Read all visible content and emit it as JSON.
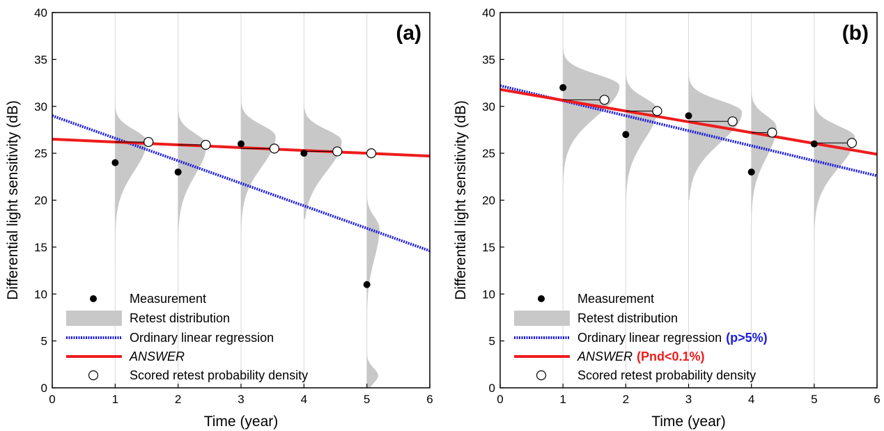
{
  "chart_data": [
    {
      "type": "scatter",
      "panel_label": "(a)",
      "xlabel": "Time (year)",
      "ylabel": "Differential light sensitivity (dB)",
      "xlim": [
        0,
        6
      ],
      "ylim": [
        0,
        40
      ],
      "x_ticks": [
        0,
        1,
        2,
        3,
        4,
        5,
        6
      ],
      "y_ticks": [
        0,
        5,
        10,
        15,
        20,
        25,
        30,
        35,
        40
      ],
      "grid": "vertical lines at x = 1..5",
      "legend_position": "bottom-left",
      "series": [
        {
          "name": "Measurement",
          "kind": "points",
          "x": [
            1,
            2,
            3,
            4,
            5
          ],
          "y": [
            24,
            23,
            26,
            25,
            11
          ]
        },
        {
          "name": "Retest distribution",
          "kind": "density",
          "distributions": [
            {
              "x": 1,
              "peak_y": 26.3,
              "peak_width_years": 0.5,
              "range": [
                7,
                32
              ]
            },
            {
              "x": 2,
              "peak_y": 25.9,
              "peak_width_years": 0.45,
              "range": [
                7,
                32
              ]
            },
            {
              "x": 3,
              "peak_y": 26.8,
              "peak_width_years": 0.55,
              "range": [
                14,
                32
              ]
            },
            {
              "x": 4,
              "peak_y": 26.3,
              "peak_width_years": 0.6,
              "range": [
                18,
                32
              ]
            },
            {
              "x": 5,
              "peak_y": 17.0,
              "peak_width_years": 0.2,
              "range": [
                0,
                33
              ],
              "secondary_peak_y": 1.3
            }
          ]
        },
        {
          "name": "Ordinary linear regression",
          "kind": "line",
          "intercept": 29.0,
          "slope": -2.4
        },
        {
          "name": "ANSWER",
          "kind": "line",
          "intercept": 26.5,
          "slope": -0.3
        },
        {
          "name": "Scored retest probability density",
          "kind": "points",
          "x": [
            1.53,
            2.44,
            3.53,
            4.53,
            5.07
          ],
          "y": [
            26.2,
            25.9,
            25.5,
            25.2,
            25.0
          ],
          "connected_from_x": [
            1,
            2,
            3,
            4,
            5
          ]
        }
      ],
      "legend": [
        {
          "label": "Measurement",
          "suffix": "",
          "suffix_color": ""
        },
        {
          "label": "Retest distribution",
          "suffix": "",
          "suffix_color": ""
        },
        {
          "label": "Ordinary linear regression",
          "suffix": "",
          "suffix_color": ""
        },
        {
          "label": "ANSWER",
          "suffix": "",
          "suffix_color": ""
        },
        {
          "label": "Scored retest probability density",
          "suffix": "",
          "suffix_color": ""
        }
      ]
    },
    {
      "type": "scatter",
      "panel_label": "(b)",
      "xlabel": "Time (year)",
      "ylabel": "Differential light sensitivity (dB)",
      "xlim": [
        0,
        6
      ],
      "ylim": [
        0,
        40
      ],
      "x_ticks": [
        0,
        1,
        2,
        3,
        4,
        5,
        6
      ],
      "y_ticks": [
        0,
        5,
        10,
        15,
        20,
        25,
        30,
        35,
        40
      ],
      "grid": "vertical lines at x = 1..5",
      "legend_position": "bottom-left",
      "series": [
        {
          "name": "Measurement",
          "kind": "points",
          "x": [
            1,
            2,
            3,
            4,
            5
          ],
          "y": [
            32,
            27,
            29,
            23,
            26
          ]
        },
        {
          "name": "Retest distribution",
          "kind": "density",
          "distributions": [
            {
              "x": 1,
              "peak_y": 32.2,
              "peak_width_years": 0.9,
              "range": [
                20,
                36
              ]
            },
            {
              "x": 2,
              "peak_y": 29.7,
              "peak_width_years": 0.5,
              "range": [
                15,
                34
              ]
            },
            {
              "x": 3,
              "peak_y": 29.4,
              "peak_width_years": 0.85,
              "range": [
                20,
                34
              ]
            },
            {
              "x": 4,
              "peak_y": 27.8,
              "peak_width_years": 0.4,
              "range": [
                0,
                32
              ]
            },
            {
              "x": 5,
              "peak_y": 26.7,
              "peak_width_years": 0.65,
              "range": [
                13,
                33
              ]
            }
          ]
        },
        {
          "name": "Ordinary linear regression",
          "kind": "line",
          "intercept": 32.2,
          "slope": -1.6
        },
        {
          "name": "ANSWER",
          "kind": "line",
          "intercept": 31.8,
          "slope": -1.15
        },
        {
          "name": "Scored retest probability density",
          "kind": "points",
          "x": [
            1.66,
            2.5,
            3.7,
            4.33,
            5.6
          ],
          "y": [
            30.7,
            29.5,
            28.4,
            27.2,
            26.1
          ],
          "connected_from_x": [
            1,
            2,
            3,
            4,
            5
          ]
        }
      ],
      "legend": [
        {
          "label": "Measurement",
          "suffix": "",
          "suffix_color": ""
        },
        {
          "label": "Retest distribution",
          "suffix": "",
          "suffix_color": ""
        },
        {
          "label": "Ordinary linear regression",
          "suffix": "(p>5%)",
          "suffix_color": "#1a1adb"
        },
        {
          "label": "ANSWER",
          "suffix": "(Pnd<0.1%)",
          "suffix_color": "#ee1c1c"
        },
        {
          "label": "Scored retest probability density",
          "suffix": "",
          "suffix_color": ""
        }
      ]
    }
  ],
  "colors": {
    "regression": "#1a1adb",
    "answer": "#ee1c1c",
    "distribution": "#c8c8c8",
    "grid": "#d9d9d9",
    "measurement": "#000000"
  }
}
